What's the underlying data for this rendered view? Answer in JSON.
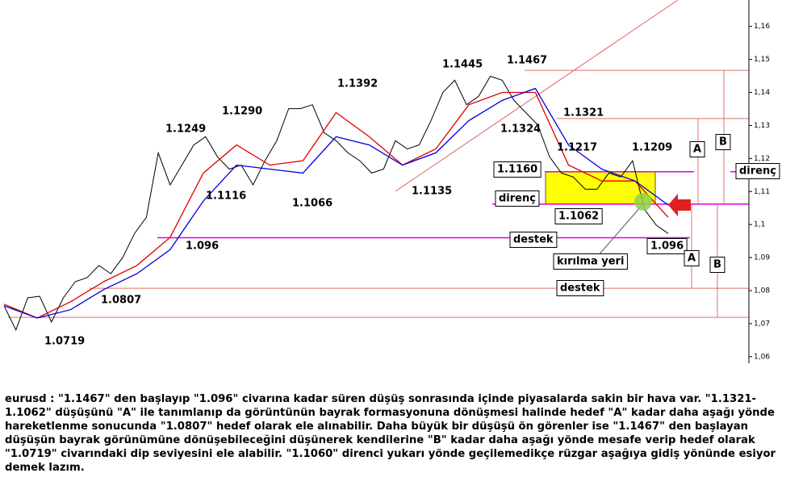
{
  "chart_data": {
    "type": "line",
    "series": [
      {
        "name": null,
        "color": "#000000",
        "values": [
          1.0754,
          1.0681,
          1.0778,
          1.0783,
          1.0705,
          1.0778,
          1.0827,
          1.0839,
          1.0876,
          1.0851,
          1.09,
          1.0973,
          1.1022,
          1.1217,
          1.112,
          1.118,
          1.1241,
          1.1266,
          1.1205,
          1.1168,
          1.118,
          1.112,
          1.1193,
          1.1254,
          1.1351,
          1.1351,
          1.1363,
          1.1278,
          1.1254,
          1.1217,
          1.1193,
          1.1156,
          1.1168,
          1.1254,
          1.1229,
          1.1241,
          1.1315,
          1.14,
          1.1437,
          1.1363,
          1.1388,
          1.1449,
          1.1437,
          1.1376,
          1.1339,
          1.1302,
          1.1205,
          1.1156,
          1.1144,
          1.1107,
          1.1107,
          1.1156,
          1.1144,
          1.1193,
          1.1046,
          1.0998,
          1.0973
        ]
      },
      {
        "name": null,
        "color": "#e00000",
        "values": [
          1.0759,
          1.0717,
          1.0766,
          1.0827,
          1.0876,
          1.0961,
          1.1156,
          1.1241,
          1.118,
          1.1193,
          1.1339,
          1.1266,
          1.118,
          1.1229,
          1.1363,
          1.14,
          1.14,
          1.118,
          1.1132,
          1.1132,
          1.1022
        ]
      },
      {
        "name": null,
        "color": "#0000e0",
        "values": [
          1.0754,
          1.0717,
          1.0742,
          1.0803,
          1.0851,
          1.0924,
          1.1071,
          1.118,
          1.1168,
          1.1156,
          1.1266,
          1.1241,
          1.118,
          1.1217,
          1.1315,
          1.1376,
          1.1412,
          1.1241,
          1.1168,
          1.1132,
          1.1059
        ]
      }
    ],
    "levels": [
      {
        "value": 1.1467,
        "color": "#e07070"
      },
      {
        "value": 1.1321,
        "color": "#e07070"
      },
      {
        "value": 1.116,
        "color": "#e000e0"
      },
      {
        "value": 1.1062,
        "color": "#e000e0"
      },
      {
        "value": 1.096,
        "color": "#e000e0"
      },
      {
        "value": 1.0807,
        "color": "#e07070"
      },
      {
        "value": 1.0719,
        "color": "#e07070"
      }
    ],
    "ylim": [
      1.058,
      1.168
    ],
    "yticks": [
      {
        "value": 1.06,
        "label": "1,06"
      },
      {
        "value": 1.07,
        "label": "1,07"
      },
      {
        "value": 1.08,
        "label": "1,08"
      },
      {
        "value": 1.09,
        "label": "1,09"
      },
      {
        "value": 1.1,
        "label": "1,1"
      },
      {
        "value": 1.11,
        "label": "1,11"
      },
      {
        "value": 1.12,
        "label": "1,12"
      },
      {
        "value": 1.13,
        "label": "1,13"
      },
      {
        "value": 1.14,
        "label": "1,14"
      },
      {
        "value": 1.15,
        "label": "1,15"
      },
      {
        "value": 1.16,
        "label": "1,16"
      }
    ],
    "annotations": [
      "1.1467",
      "1.1445",
      "1.1392",
      "1.1290",
      "1.1249",
      "1.1116",
      "1.1066",
      "1.1135",
      "1.1321",
      "1.1324",
      "1.1217",
      "1.1209",
      "1.1160",
      "direnç",
      "1.1062",
      "destek",
      "1.096",
      "kırılma yeri",
      "destek",
      "1.096",
      "1.0807",
      "1.0719",
      "A",
      "B",
      "A",
      "B",
      "direnç"
    ],
    "description": "eurusd : \"1.1467\" den başlayıp \"1.096\" civarına kadar süren düşüş sonrasında içinde piyasalarda sakin bir hava var. \"1.1321-1.1062\" düşüşünü \"A\" ile tanımlanıp da görüntünün bayrak formasyonuna dönüşmesi halinde hedef \"A\" kadar daha aşağı yönde hareketlenme sonucunda \"1.0807\" hedef olarak ele alınabilir. Daha büyük bir düşüşü ön görenler ise \"1.1467\" den başlayan düşüşün bayrak görünümüne dönüşebileceğini düşünerek kendilerine \"B\" kadar daha aşağı yönde mesafe verip hedef olarak \"1.0719\" civarındaki dip seviyesini ele alabilir. \"1.1060\" direnci yukarı yönde geçilemedikçe rüzgar aşağıya gidiş yönünde esiyor demek lazım."
  }
}
